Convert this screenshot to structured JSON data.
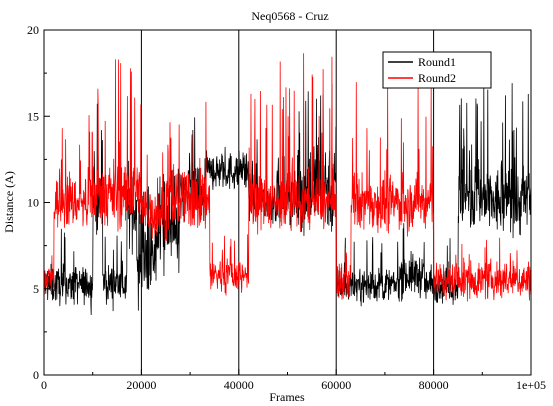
{
  "chart_data": {
    "type": "line",
    "title": "",
    "subtitle": "Neq0568 - Cruz",
    "xlabel": "Frames",
    "ylabel": "Distance (A)",
    "xlim": [
      0,
      100000
    ],
    "ylim": [
      0,
      20
    ],
    "x_ticks": [
      0,
      20000,
      40000,
      60000,
      80000,
      100000
    ],
    "x_tick_labels": [
      "0",
      "20000",
      "40000",
      "60000",
      "80000",
      "1e+05"
    ],
    "y_ticks": [
      0,
      5,
      10,
      15,
      20
    ],
    "y_tick_labels": [
      "0",
      "5",
      "10",
      "15",
      "20"
    ],
    "vertical_gridlines_at": [
      20000,
      40000,
      60000,
      80000
    ],
    "legend_position": "top-right",
    "series": [
      {
        "name": "Round1",
        "color": "#000000",
        "segments": [
          {
            "x0": 0,
            "x1": 10000,
            "mean": 5.2,
            "noise": 0.9,
            "spikes": 0.06,
            "spike_max": 8.5
          },
          {
            "x0": 10000,
            "x1": 12000,
            "mean": 10.0,
            "noise": 1.8,
            "spikes": 0.1,
            "spike_max": 16.5
          },
          {
            "x0": 12000,
            "x1": 17000,
            "mean": 5.3,
            "noise": 0.9,
            "spikes": 0.05,
            "spike_max": 8.5
          },
          {
            "x0": 17000,
            "x1": 19000,
            "mean": 9.5,
            "noise": 1.6,
            "spikes": 0.08,
            "spike_max": 14
          },
          {
            "x0": 19000,
            "x1": 23000,
            "mean": 6.5,
            "noise": 1.8,
            "spikes": 0.1,
            "spike_max": 11
          },
          {
            "x0": 23000,
            "x1": 28000,
            "mean": 8.5,
            "noise": 2.0,
            "spikes": 0.1,
            "spike_max": 12
          },
          {
            "x0": 28000,
            "x1": 33000,
            "mean": 10.5,
            "noise": 1.6,
            "spikes": 0.1,
            "spike_max": 16
          },
          {
            "x0": 33000,
            "x1": 42000,
            "mean": 11.8,
            "noise": 0.9,
            "spikes": 0.05,
            "spike_max": 13.5
          },
          {
            "x0": 42000,
            "x1": 52000,
            "mean": 10.2,
            "noise": 1.2,
            "spikes": 0.06,
            "spike_max": 14
          },
          {
            "x0": 52000,
            "x1": 60000,
            "mean": 11.0,
            "noise": 2.2,
            "spikes": 0.12,
            "spike_max": 17
          },
          {
            "x0": 60000,
            "x1": 73000,
            "mean": 5.2,
            "noise": 0.8,
            "spikes": 0.05,
            "spike_max": 8
          },
          {
            "x0": 73000,
            "x1": 78000,
            "mean": 5.8,
            "noise": 1.0,
            "spikes": 0.06,
            "spike_max": 9
          },
          {
            "x0": 78000,
            "x1": 85000,
            "mean": 5.2,
            "noise": 0.8,
            "spikes": 0.05,
            "spike_max": 8
          },
          {
            "x0": 85000,
            "x1": 100000,
            "mean": 10.0,
            "noise": 1.6,
            "spikes": 0.12,
            "spike_max": 17
          }
        ]
      },
      {
        "name": "Round2",
        "color": "#ff0000",
        "segments": [
          {
            "x0": 0,
            "x1": 2000,
            "mean": 5.5,
            "noise": 1.0,
            "spikes": 0.05,
            "spike_max": 8
          },
          {
            "x0": 2000,
            "x1": 10000,
            "mean": 10.0,
            "noise": 1.2,
            "spikes": 0.08,
            "spike_max": 16
          },
          {
            "x0": 10000,
            "x1": 20000,
            "mean": 10.5,
            "noise": 1.6,
            "spikes": 0.1,
            "spike_max": 19
          },
          {
            "x0": 20000,
            "x1": 25000,
            "mean": 9.5,
            "noise": 1.5,
            "spikes": 0.08,
            "spike_max": 13
          },
          {
            "x0": 25000,
            "x1": 34000,
            "mean": 10.2,
            "noise": 1.5,
            "spikes": 0.1,
            "spike_max": 16
          },
          {
            "x0": 34000,
            "x1": 42000,
            "mean": 5.8,
            "noise": 0.9,
            "spikes": 0.05,
            "spike_max": 8.5
          },
          {
            "x0": 42000,
            "x1": 60000,
            "mean": 10.0,
            "noise": 1.3,
            "spikes": 0.1,
            "spike_max": 19
          },
          {
            "x0": 60000,
            "x1": 63000,
            "mean": 5.5,
            "noise": 1.0,
            "spikes": 0.05,
            "spike_max": 8
          },
          {
            "x0": 63000,
            "x1": 80000,
            "mean": 10.0,
            "noise": 1.3,
            "spikes": 0.1,
            "spike_max": 17
          },
          {
            "x0": 80000,
            "x1": 100000,
            "mean": 5.5,
            "noise": 0.9,
            "spikes": 0.05,
            "spike_max": 8
          }
        ]
      }
    ]
  }
}
